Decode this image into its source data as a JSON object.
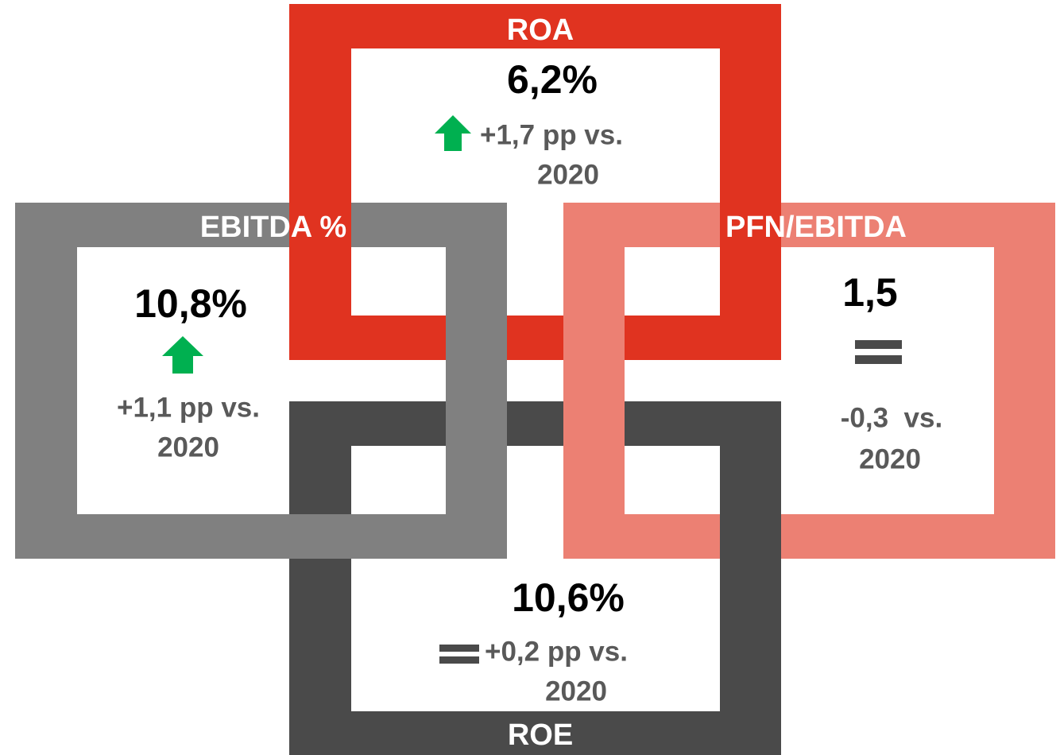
{
  "cards": [
    {
      "title": "ROA",
      "value": "6,2%",
      "change": [
        "+1,7 pp vs.",
        "2020"
      ]
    },
    {
      "title": "EBITDA %",
      "value": "10,8%",
      "change": [
        "+1,1 pp vs.",
        "2020"
      ]
    },
    {
      "title": "PFN/EBITDA",
      "value": "1,5",
      "change": [
        "-0,3  vs.",
        "2020"
      ]
    },
    {
      "title": "ROE",
      "value": "10,6%",
      "change": [
        "+0,2 pp vs.",
        "2020"
      ]
    }
  ]
}
